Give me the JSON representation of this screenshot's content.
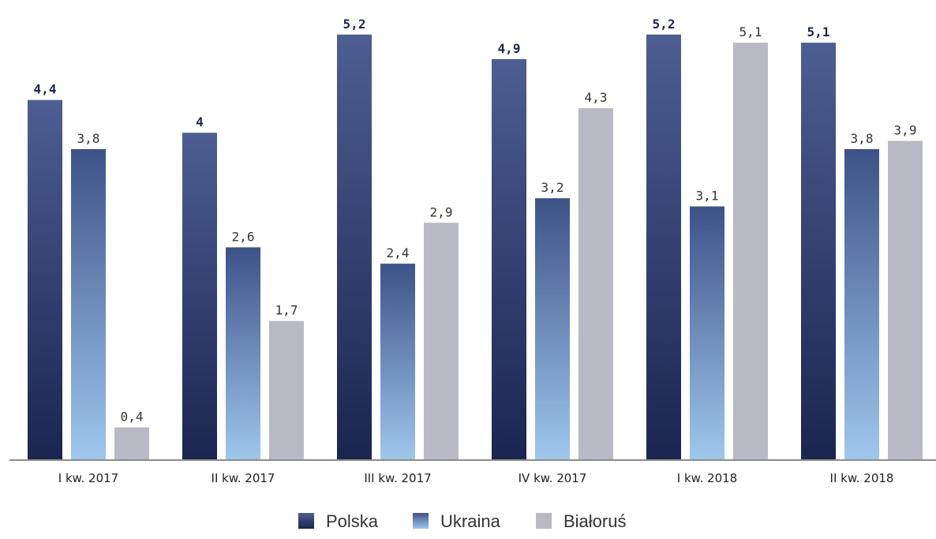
{
  "chart_data": {
    "type": "bar",
    "title": "",
    "xlabel": "",
    "ylabel": "",
    "ylim": [
      0,
      5.4
    ],
    "grid": false,
    "legend_position": "bottom",
    "categories": [
      "I kw. 2017",
      "II kw. 2017",
      "III kw. 2017",
      "IV kw. 2017",
      "I kw. 2018",
      "II kw. 2018"
    ],
    "series": [
      {
        "name": "Polska",
        "values": [
          4.4,
          4,
          5.2,
          4.9,
          5.2,
          5.1
        ],
        "labels": [
          "4,4",
          "4",
          "5,2",
          "4,9",
          "5,2",
          "5,1"
        ],
        "color": "#1b2550",
        "color_top": "#4d5e92",
        "label_bold": true
      },
      {
        "name": "Ukraina",
        "values": [
          3.8,
          2.6,
          2.4,
          3.2,
          3.1,
          3.8
        ],
        "labels": [
          "3,8",
          "2,6",
          "2,4",
          "3,2",
          "3,1",
          "3,8"
        ],
        "color": "#9fc7ec",
        "color_top": "#3d5288",
        "label_bold": false
      },
      {
        "name": "Białoruś",
        "values": [
          0.4,
          1.7,
          2.9,
          4.3,
          5.1,
          3.9
        ],
        "labels": [
          "0,4",
          "1,7",
          "2,9",
          "4,3",
          "5,1",
          "3,9"
        ],
        "color": "#b9b9c6",
        "color_top": "#b9b9c6",
        "label_bold": false
      }
    ]
  }
}
